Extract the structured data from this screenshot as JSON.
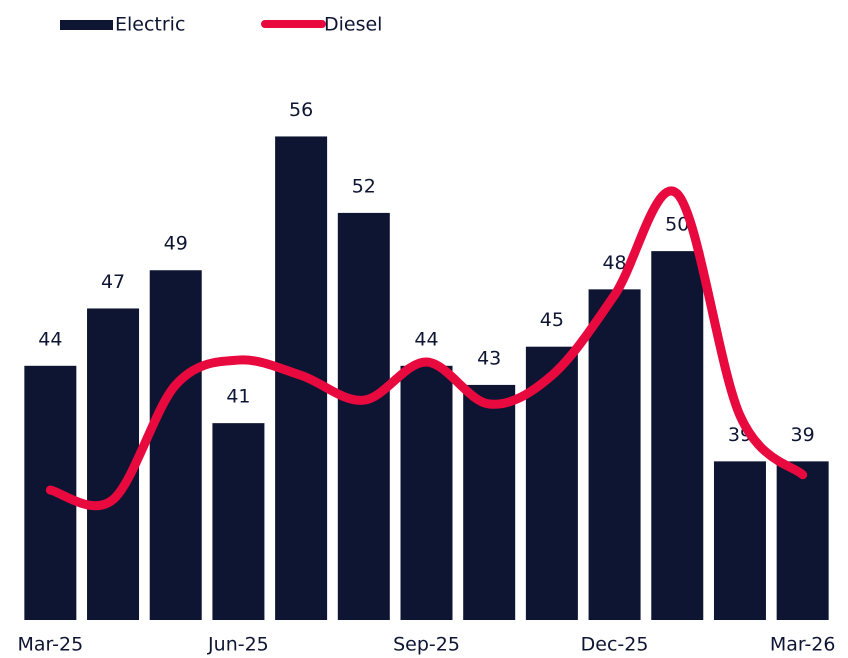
{
  "chart_data": {
    "type": "bar-line",
    "categories": [
      "Mar-25",
      null,
      null,
      "Jun-25",
      null,
      null,
      "Sep-25",
      null,
      null,
      "Dec-25",
      null,
      null,
      "Mar-26"
    ],
    "series": [
      {
        "name": "Electric",
        "type": "bar",
        "color": "#0e1533",
        "values": [
          44,
          47,
          49,
          41,
          56,
          52,
          44,
          43,
          45,
          48,
          50,
          39,
          39
        ]
      },
      {
        "name": "Diesel",
        "type": "line",
        "color": "#e8093f",
        "values": [
          37.5,
          37,
          43,
          44.3,
          43.5,
          42.2,
          44.2,
          42,
          43.5,
          47.7,
          53,
          41.4,
          38.3
        ]
      }
    ],
    "ylim": [
      30.7,
      60
    ]
  }
}
